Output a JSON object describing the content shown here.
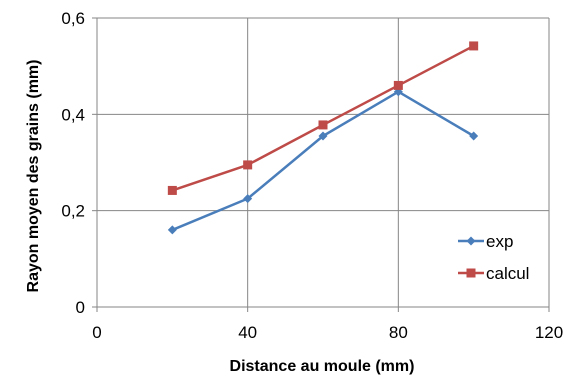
{
  "chart_data": {
    "type": "line",
    "xlabel": "Distance au moule (mm)",
    "ylabel": "Rayon moyen des grains (mm)",
    "xlim": [
      0,
      120
    ],
    "ylim": [
      0,
      0.6
    ],
    "x_ticks": [
      {
        "value": 0,
        "label": "0"
      },
      {
        "value": 40,
        "label": "40"
      },
      {
        "value": 80,
        "label": "80"
      },
      {
        "value": 120,
        "label": "120"
      }
    ],
    "y_ticks": [
      {
        "value": 0,
        "label": "0"
      },
      {
        "value": 0.2,
        "label": "0,2"
      },
      {
        "value": 0.4,
        "label": "0,4"
      },
      {
        "value": 0.6,
        "label": "0,6"
      }
    ],
    "grid": true,
    "legend_position": "right",
    "series": [
      {
        "name": "exp",
        "color": "#4a7ebb",
        "marker": "diamond",
        "x": [
          20,
          40,
          60,
          80,
          100
        ],
        "y": [
          0.16,
          0.225,
          0.355,
          0.447,
          0.355
        ]
      },
      {
        "name": "calcul",
        "color": "#be4b48",
        "marker": "square",
        "x": [
          20,
          40,
          60,
          80,
          100
        ],
        "y": [
          0.242,
          0.295,
          0.378,
          0.46,
          0.542
        ]
      }
    ]
  }
}
